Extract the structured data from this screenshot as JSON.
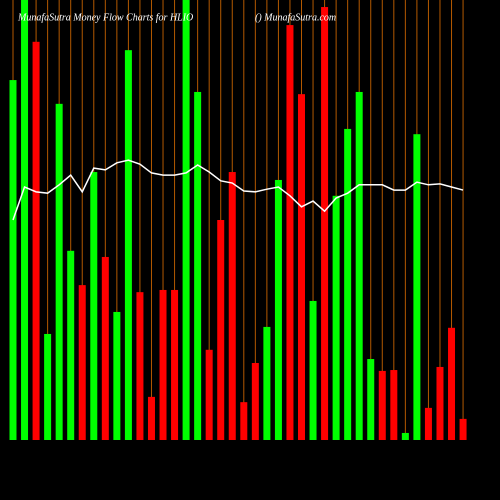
{
  "chart_data": {
    "type": "bar",
    "title": "MunafaSutra  Money Flow  Charts for HLIO",
    "subtitle": "() MunafaSutra.com",
    "categories": [
      null,
      null,
      null,
      null,
      null,
      null,
      null,
      null,
      null,
      null,
      null,
      null,
      null,
      null,
      null,
      null,
      null,
      null,
      null,
      null,
      null,
      null,
      null,
      null,
      null,
      null,
      null,
      null,
      null,
      null,
      null,
      null,
      null,
      null,
      null,
      null,
      null,
      null,
      null,
      null
    ],
    "values": [
      81.8,
      100,
      90.5,
      24.1,
      76.4,
      43.0,
      35.2,
      60.9,
      41.6,
      29.1,
      88.6,
      33.6,
      9.8,
      34.1,
      34.1,
      100,
      79.1,
      20.5,
      50.0,
      60.9,
      8.6,
      17.5,
      25.7,
      59.1,
      94.3,
      78.6,
      31.6,
      98.4,
      55.5,
      70.7,
      79.1,
      18.4,
      15.7,
      15.9,
      1.6,
      69.5,
      7.3,
      16.6,
      25.5,
      4.8
    ],
    "colors": [
      "#00ff00",
      "#00ff00",
      "#ff0000",
      "#00ff00",
      "#00ff00",
      "#00ff00",
      "#ff0000",
      "#00ff00",
      "#ff0000",
      "#00ff00",
      "#00ff00",
      "#ff0000",
      "#ff0000",
      "#ff0000",
      "#ff0000",
      "#00ff00",
      "#00ff00",
      "#ff0000",
      "#ff0000",
      "#ff0000",
      "#ff0000",
      "#ff0000",
      "#00ff00",
      "#00ff00",
      "#ff0000",
      "#ff0000",
      "#00ff00",
      "#ff0000",
      "#00ff00",
      "#00ff00",
      "#00ff00",
      "#00ff00",
      "#ff0000",
      "#ff0000",
      "#00ff00",
      "#00ff00",
      "#ff0000",
      "#ff0000",
      "#ff0000",
      "#ff0000"
    ],
    "line_values": [
      50.0,
      57.5,
      56.4,
      56.1,
      58.0,
      60.2,
      56.4,
      61.8,
      61.4,
      63.0,
      63.6,
      62.7,
      60.7,
      60.2,
      60.2,
      60.7,
      62.5,
      60.9,
      58.9,
      58.4,
      56.6,
      56.4,
      57.0,
      57.5,
      55.5,
      53.0,
      54.3,
      52.0,
      55.0,
      56.1,
      58.0,
      58.0,
      58.0,
      56.8,
      56.8,
      58.6,
      58.0,
      58.2,
      57.5,
      56.8
    ],
    "line_color": "#ffffff",
    "category_line_color": "#b35900",
    "ylim": [
      0,
      100
    ]
  }
}
